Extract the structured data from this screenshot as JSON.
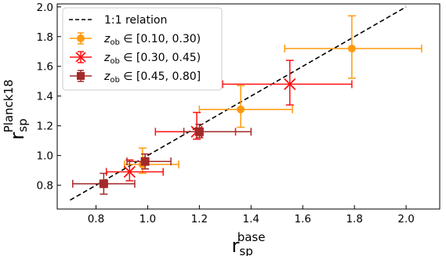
{
  "chart_data": {
    "type": "scatter",
    "xlabel": {
      "main": "r",
      "sub": "sp",
      "sup": "base"
    },
    "ylabel": {
      "main": "r",
      "sub": "sp",
      "sup": "Planck18"
    },
    "xlim": [
      0.65,
      2.13
    ],
    "ylim": [
      0.64,
      2.02
    ],
    "x_ticks": [
      0.8,
      1.0,
      1.2,
      1.4,
      1.6,
      1.8,
      2.0
    ],
    "y_ticks": [
      0.8,
      1.0,
      1.2,
      1.4,
      1.6,
      1.8,
      2.0
    ],
    "x_tick_labels": [
      "0.8",
      "1.0",
      "1.2",
      "1.4",
      "1.6",
      "1.8",
      "2.0"
    ],
    "y_tick_labels": [
      "0.8",
      "1.0",
      "1.2",
      "1.4",
      "1.6",
      "1.8",
      "2.0"
    ],
    "grid": false,
    "legend_position": "top-left",
    "reference_line": {
      "label": "1:1 relation",
      "x": [
        0.7,
        2.0
      ],
      "y": [
        0.7,
        2.0
      ],
      "style": "dashed",
      "color": "#000000"
    },
    "series": [
      {
        "name": "z_ob ∈ [0.10, 0.30)",
        "legend_sub": "ob",
        "legend_range": "∈ [0.10, 0.30)",
        "color": "#ff9a0e",
        "marker": "circle",
        "points": [
          {
            "x": 0.98,
            "y": 0.94,
            "xerr_lo": 0.07,
            "xerr_hi": 0.14,
            "yerr_lo": 0.06,
            "yerr_hi": 0.11
          },
          {
            "x": 1.36,
            "y": 1.31,
            "xerr_lo": 0.16,
            "xerr_hi": 0.2,
            "yerr_lo": 0.12,
            "yerr_hi": 0.16
          },
          {
            "x": 1.79,
            "y": 1.72,
            "xerr_lo": 0.26,
            "xerr_hi": 0.27,
            "yerr_lo": 0.2,
            "yerr_hi": 0.22
          }
        ]
      },
      {
        "name": "z_ob ∈ [0.30, 0.45)",
        "legend_sub": "ob",
        "legend_range": "∈ [0.30, 0.45)",
        "color": "#ff1010",
        "marker": "x-star",
        "points": [
          {
            "x": 0.93,
            "y": 0.89,
            "xerr_lo": 0.09,
            "xerr_hi": 0.13,
            "yerr_lo": 0.06,
            "yerr_hi": 0.08
          },
          {
            "x": 1.19,
            "y": 1.16,
            "xerr_lo": 0.16,
            "xerr_hi": 0.15,
            "yerr_lo": 0.05,
            "yerr_hi": 0.13
          },
          {
            "x": 1.55,
            "y": 1.48,
            "xerr_lo": 0.26,
            "xerr_hi": 0.24,
            "yerr_lo": 0.14,
            "yerr_hi": 0.16
          }
        ]
      },
      {
        "name": "z_ob ∈ [0.45, 0.80]",
        "legend_sub": "ob",
        "legend_range": "∈ [0.45, 0.80]",
        "color": "#a32a2a",
        "marker": "square",
        "points": [
          {
            "x": 0.83,
            "y": 0.81,
            "xerr_lo": 0.12,
            "xerr_hi": 0.12,
            "yerr_lo": 0.07,
            "yerr_hi": 0.07
          },
          {
            "x": 0.99,
            "y": 0.96,
            "xerr_lo": 0.07,
            "xerr_hi": 0.1,
            "yerr_lo": 0.05,
            "yerr_hi": 0.05
          },
          {
            "x": 1.2,
            "y": 1.16,
            "xerr_lo": 0.06,
            "xerr_hi": 0.2,
            "yerr_lo": 0.04,
            "yerr_hi": 0.05
          }
        ]
      }
    ]
  }
}
